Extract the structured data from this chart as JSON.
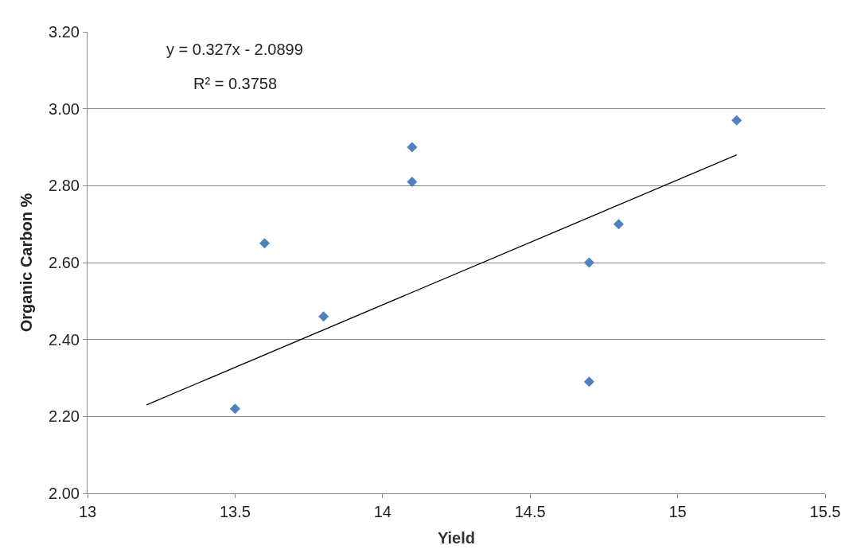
{
  "chart_data": {
    "type": "scatter",
    "xlabel": "Yield",
    "ylabel": "Organic Carbon %",
    "annotations": [
      "y = 0.327x - 2.0899",
      "R² = 0.3758"
    ],
    "series": [
      {
        "color": "#4f81bd",
        "marker": "diamond",
        "x": [
          13.5,
          13.6,
          13.8,
          14.1,
          14.1,
          14.7,
          14.7,
          14.8,
          15.2
        ],
        "values": [
          2.22,
          2.65,
          2.46,
          2.9,
          2.81,
          2.6,
          2.29,
          2.7,
          2.97
        ]
      },
      {
        "type": "line",
        "color": "#000000",
        "marker": "none",
        "line_style": "solid",
        "x": [
          13.2,
          15.2
        ],
        "values": [
          2.23,
          2.88
        ]
      }
    ],
    "xlim": [
      13,
      15.5
    ],
    "xticks": [
      13,
      13.5,
      14,
      14.5,
      15,
      15.5
    ],
    "ylim": [
      2.0,
      3.2
    ],
    "yticks": [
      {
        "value": 2.0,
        "label": "2.00"
      },
      {
        "value": 2.2,
        "label": "2.20"
      },
      {
        "value": 2.4,
        "label": "2.40"
      },
      {
        "value": 2.6,
        "label": "2.60"
      },
      {
        "value": 2.8,
        "label": "2.80"
      },
      {
        "value": 3.0,
        "label": "3.00"
      },
      {
        "value": 3.2,
        "label": "3.20"
      }
    ],
    "grid": "y"
  }
}
